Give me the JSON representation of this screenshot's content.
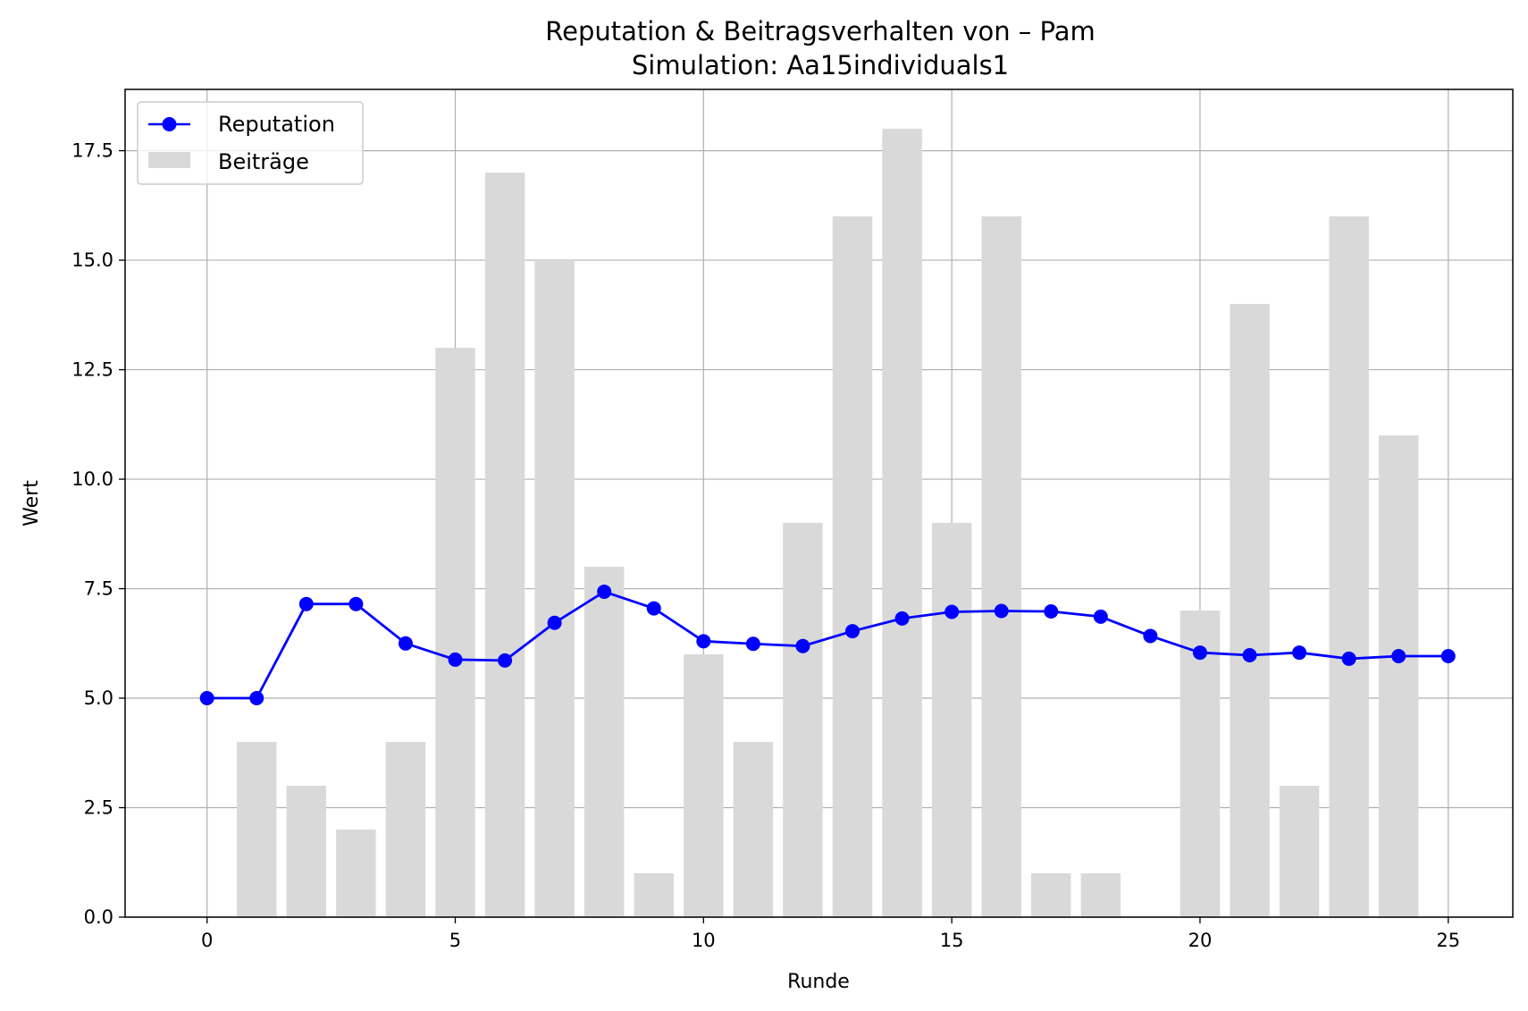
{
  "chart_data": {
    "type": "bar",
    "title": "Reputation & Beitragsverhalten von – Pam",
    "subtitle": "Simulation: Aa15individuals1",
    "xlabel": "Runde",
    "ylabel": "Wert",
    "xlim": [
      -1.65,
      26.3
    ],
    "ylim": [
      0,
      18.9
    ],
    "xticks": [
      0,
      5,
      10,
      15,
      20,
      25
    ],
    "xtick_labels": [
      "0",
      "5",
      "10",
      "15",
      "20",
      "25"
    ],
    "yticks": [
      0,
      2.5,
      5,
      7.5,
      10,
      12.5,
      15,
      17.5
    ],
    "ytick_labels": [
      "0.0",
      "2.5",
      "5.0",
      "7.5",
      "10.0",
      "12.5",
      "15.0",
      "17.5"
    ],
    "grid": true,
    "legend_position": "upper-left",
    "series": [
      {
        "name": "Reputation",
        "kind": "line",
        "color": "#0000ff",
        "x": [
          0,
          1,
          2,
          3,
          4,
          5,
          6,
          7,
          8,
          9,
          10,
          11,
          12,
          13,
          14,
          15,
          16,
          17,
          18,
          19,
          20,
          21,
          22,
          23,
          24,
          25
        ],
        "values": [
          5.0,
          5.0,
          7.15,
          7.15,
          6.25,
          5.88,
          5.86,
          6.72,
          7.43,
          7.05,
          6.3,
          6.24,
          6.19,
          6.53,
          6.82,
          6.97,
          6.99,
          6.98,
          6.86,
          6.42,
          6.04,
          5.98,
          6.04,
          5.9,
          5.96,
          5.96
        ]
      },
      {
        "name": "Beiträge",
        "kind": "bar",
        "color": "#d9d9d9",
        "x": [
          1,
          2,
          3,
          4,
          5,
          6,
          7,
          8,
          9,
          10,
          11,
          12,
          13,
          14,
          15,
          16,
          17,
          18,
          20,
          21,
          22,
          23,
          24
        ],
        "values": [
          4,
          3,
          2,
          4,
          13,
          17,
          15,
          8,
          1,
          6,
          4,
          9,
          16,
          18,
          9,
          16,
          1,
          1,
          7,
          14,
          3,
          16,
          11
        ]
      }
    ]
  }
}
